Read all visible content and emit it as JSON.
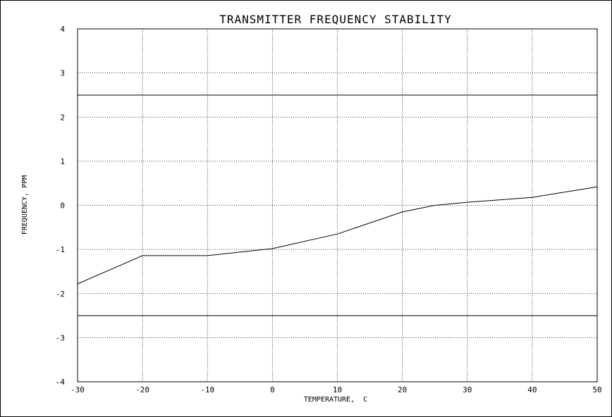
{
  "chart_data": {
    "type": "line",
    "title": "TRANSMITTER FREQUENCY STABILITY",
    "xlabel": "TEMPERATURE,  C",
    "ylabel": "FREQUENCY, PPM",
    "xlim": [
      -30,
      50
    ],
    "ylim": [
      -4,
      4
    ],
    "grid": true,
    "x_ticks": [
      -30,
      -20,
      -10,
      0,
      10,
      20,
      30,
      40,
      50
    ],
    "y_ticks": [
      -4,
      -3,
      -2,
      -1,
      0,
      1,
      2,
      3,
      4
    ],
    "x_tick_labels": [
      "-30",
      "-20",
      "-10",
      "0",
      "10",
      "20",
      "30",
      "40",
      "50"
    ],
    "y_tick_labels": [
      "-4",
      "-3",
      "-2",
      "-1",
      "0",
      "1",
      "2",
      "3",
      "4"
    ],
    "series": [
      {
        "x": [
          -30,
          -20,
          -10,
          0,
          10,
          20,
          25,
          30,
          40,
          50
        ],
        "y": [
          -1.78,
          -1.14,
          -1.14,
          -0.98,
          -0.65,
          -0.15,
          0.0,
          0.07,
          0.18,
          0.42
        ]
      }
    ],
    "limit_lines": [
      2.5,
      -2.5
    ]
  }
}
